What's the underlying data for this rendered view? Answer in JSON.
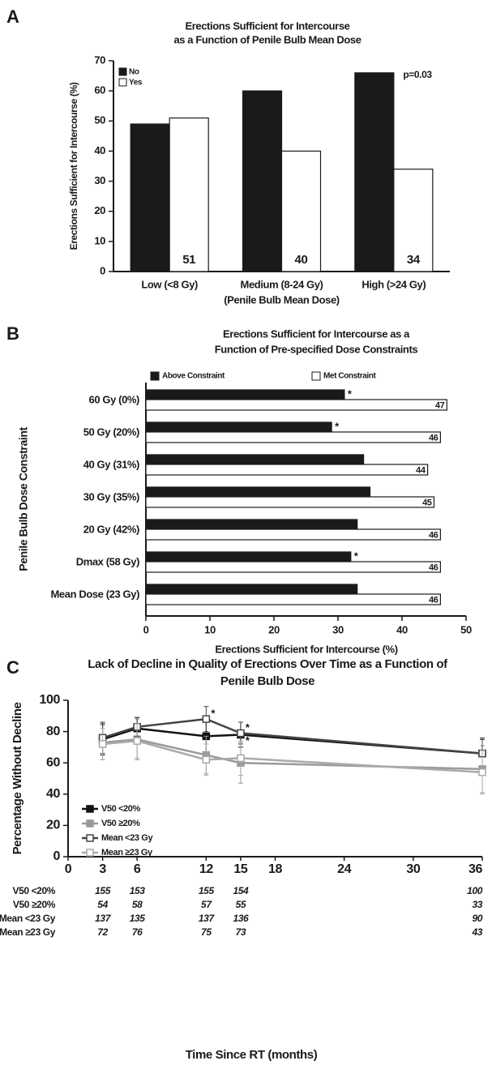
{
  "chart_data": [
    {
      "type": "bar",
      "panel": "A",
      "title": [
        "Erections Sufficient for Intercourse",
        "as a Function of Penile Bulb Mean Dose"
      ],
      "ylabel": "Erections Sufficient for Intercourse (%)",
      "xlabel": "(Penile Bulb Mean Dose)",
      "categories": [
        "Low (<8 Gy)",
        "Medium (8-24 Gy)",
        "High (>24 Gy)"
      ],
      "series": [
        {
          "name": "No",
          "color": "#1a1a1a",
          "values": [
            49,
            60,
            66
          ]
        },
        {
          "name": "Yes",
          "color": "#ffffff",
          "values": [
            51,
            40,
            34
          ]
        }
      ],
      "annotation": "p=0.03",
      "ylim": [
        0,
        70
      ],
      "yticks": [
        0,
        10,
        20,
        30,
        40,
        50,
        60,
        70
      ],
      "legend": "upper left"
    },
    {
      "type": "hbar",
      "panel": "B",
      "title": [
        "Erections Sufficient for Intercourse as a",
        "Function of Pre-specified Dose Constraints"
      ],
      "xlabel": "Erections Sufficient for Intercourse (%)",
      "ylabel": "Penile Bulb Dose Constraint",
      "categories": [
        "60 Gy (0%)",
        "50 Gy (20%)",
        "40 Gy (31%)",
        "30 Gy (35%)",
        "20 Gy (42%)",
        "Dmax (58 Gy)",
        "Mean Dose (23 Gy)"
      ],
      "series": [
        {
          "name": "Above Constraint",
          "color": "#1a1a1a",
          "values": [
            31,
            29,
            34,
            35,
            33,
            32,
            33
          ],
          "significance": [
            "*",
            "*",
            null,
            null,
            null,
            "*",
            null
          ]
        },
        {
          "name": "Met Constraint",
          "color": "#ffffff",
          "values": [
            47,
            46,
            44,
            45,
            46,
            46,
            46
          ]
        }
      ],
      "xlim": [
        0,
        50
      ],
      "xticks": [
        0,
        10,
        20,
        30,
        40,
        50
      ],
      "legend": "top"
    },
    {
      "type": "line",
      "panel": "C",
      "title": [
        "Lack of Decline in Quality of Erections Over Time as a Function of",
        "Penile Bulb Dose"
      ],
      "xlabel": "Time Since RT (months)",
      "ylabel": "Percentage Without Decline",
      "x": [
        3,
        6,
        12,
        15,
        36
      ],
      "series": [
        {
          "name": "V50 <20%",
          "color": "#111111",
          "marker": "filled",
          "values": [
            75,
            82,
            77,
            78,
            66
          ],
          "errors": [
            10,
            7,
            12,
            8,
            9
          ],
          "significance": [
            null,
            null,
            null,
            "*",
            null
          ]
        },
        {
          "name": "V50 ≥20%",
          "color": "#999999",
          "marker": "filled",
          "values": [
            73,
            75,
            65,
            60,
            56
          ],
          "errors": [
            11,
            13,
            12,
            13,
            15
          ],
          "significance": [
            null,
            null,
            null,
            null,
            null
          ]
        },
        {
          "name": "Mean <23 Gy",
          "color": "#444444",
          "marker": "open",
          "values": [
            76,
            83,
            88,
            79,
            66
          ],
          "errors": [
            10,
            6,
            8,
            7,
            10
          ],
          "significance": [
            null,
            null,
            "*",
            "*",
            null
          ]
        },
        {
          "name": "Mean ≥23 Gy",
          "color": "#aaaaaa",
          "marker": "open",
          "values": [
            72,
            74,
            62,
            63,
            54
          ],
          "errors": [
            10,
            11,
            10,
            11,
            14
          ],
          "significance": [
            null,
            null,
            null,
            null,
            null
          ]
        }
      ],
      "risk_table": [
        [
          155,
          153,
          155,
          154,
          100
        ],
        [
          54,
          58,
          57,
          55,
          33
        ],
        [
          137,
          135,
          137,
          136,
          90
        ],
        [
          72,
          76,
          75,
          73,
          43
        ]
      ],
      "xlim": [
        0,
        36
      ],
      "xticks": [
        0,
        3,
        6,
        12,
        15,
        18,
        24,
        30,
        36
      ],
      "ylim": [
        0,
        100
      ],
      "yticks": [
        0,
        20,
        40,
        60,
        80,
        100
      ],
      "legend": "lower left"
    }
  ]
}
